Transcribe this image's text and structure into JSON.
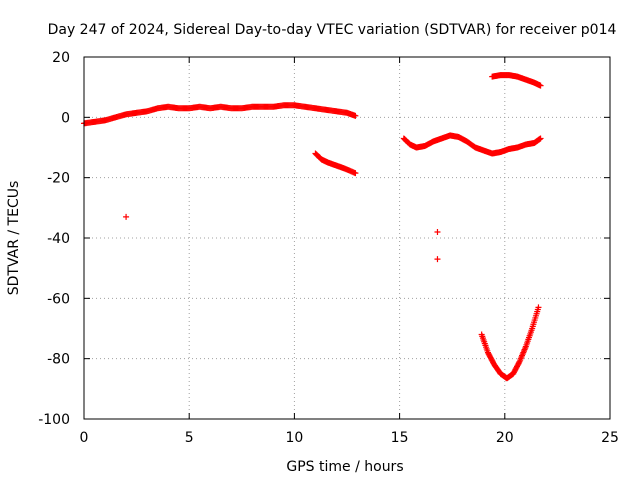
{
  "chart_data": {
    "type": "scatter",
    "title": "Day 247 of 2024, Sidereal Day-to-day VTEC variation (SDTVAR) for receiver p014",
    "xlabel": "GPS time / hours",
    "ylabel": "SDTVAR / TECUs",
    "xlim": [
      0,
      25
    ],
    "ylim": [
      -100,
      20
    ],
    "xticks": [
      0,
      5,
      10,
      15,
      20,
      25
    ],
    "yticks": [
      -100,
      -80,
      -60,
      -40,
      -20,
      0,
      20
    ],
    "xtick_labels": [
      "0",
      "5",
      "10",
      "15",
      "20",
      "25"
    ],
    "ytick_labels": [
      "-100",
      "-80",
      "-60",
      "-40",
      "-20",
      "0",
      "20"
    ],
    "grid": true,
    "marker": "+",
    "color": "#ff0000",
    "series": [
      {
        "name": "arc-1",
        "points": [
          [
            0,
            -2
          ],
          [
            0.5,
            -1.5
          ],
          [
            1,
            -1
          ],
          [
            1.5,
            0
          ],
          [
            2,
            1
          ],
          [
            2.5,
            1.5
          ],
          [
            3,
            2
          ],
          [
            3.5,
            3
          ],
          [
            4,
            3.5
          ],
          [
            4.5,
            3
          ],
          [
            5,
            3
          ],
          [
            5.5,
            3.5
          ],
          [
            6,
            3
          ],
          [
            6.5,
            3.5
          ],
          [
            7,
            3
          ],
          [
            7.5,
            3
          ],
          [
            8,
            3.5
          ],
          [
            8.5,
            3.5
          ],
          [
            9,
            3.5
          ],
          [
            9.5,
            4
          ],
          [
            10,
            4
          ],
          [
            10.5,
            3.5
          ],
          [
            11,
            3
          ],
          [
            11.5,
            2.5
          ],
          [
            12,
            2
          ],
          [
            12.5,
            1.5
          ],
          [
            12.9,
            0.5
          ]
        ]
      },
      {
        "name": "arc-2",
        "points": [
          [
            11,
            -12
          ],
          [
            11.3,
            -14
          ],
          [
            11.6,
            -15
          ],
          [
            12,
            -16
          ],
          [
            12.4,
            -17
          ],
          [
            12.9,
            -18.5
          ]
        ]
      },
      {
        "name": "arc-3",
        "points": [
          [
            15.2,
            -7
          ],
          [
            15.5,
            -9
          ],
          [
            15.8,
            -10
          ],
          [
            16.2,
            -9.5
          ],
          [
            16.6,
            -8
          ],
          [
            17,
            -7
          ],
          [
            17.4,
            -6
          ],
          [
            17.8,
            -6.5
          ],
          [
            18.2,
            -8
          ],
          [
            18.6,
            -10
          ],
          [
            19,
            -11
          ],
          [
            19.4,
            -12
          ],
          [
            19.8,
            -11.5
          ],
          [
            20.2,
            -10.5
          ],
          [
            20.6,
            -10
          ],
          [
            21,
            -9
          ],
          [
            21.4,
            -8.5
          ],
          [
            21.7,
            -7
          ]
        ]
      },
      {
        "name": "arc-4",
        "points": [
          [
            19.4,
            13.5
          ],
          [
            19.8,
            14
          ],
          [
            20.2,
            14
          ],
          [
            20.6,
            13.5
          ],
          [
            21,
            12.5
          ],
          [
            21.4,
            11.5
          ],
          [
            21.7,
            10.5
          ]
        ]
      },
      {
        "name": "arc-5",
        "points": [
          [
            18.9,
            -72
          ],
          [
            19.2,
            -78
          ],
          [
            19.5,
            -82
          ],
          [
            19.8,
            -85
          ],
          [
            20.1,
            -86.5
          ],
          [
            20.4,
            -85
          ],
          [
            20.7,
            -81
          ],
          [
            21,
            -76
          ],
          [
            21.3,
            -70
          ],
          [
            21.6,
            -63
          ]
        ]
      },
      {
        "name": "isolated",
        "points": [
          [
            2,
            -33
          ],
          [
            16.8,
            -38
          ],
          [
            16.8,
            -47
          ]
        ]
      }
    ]
  }
}
